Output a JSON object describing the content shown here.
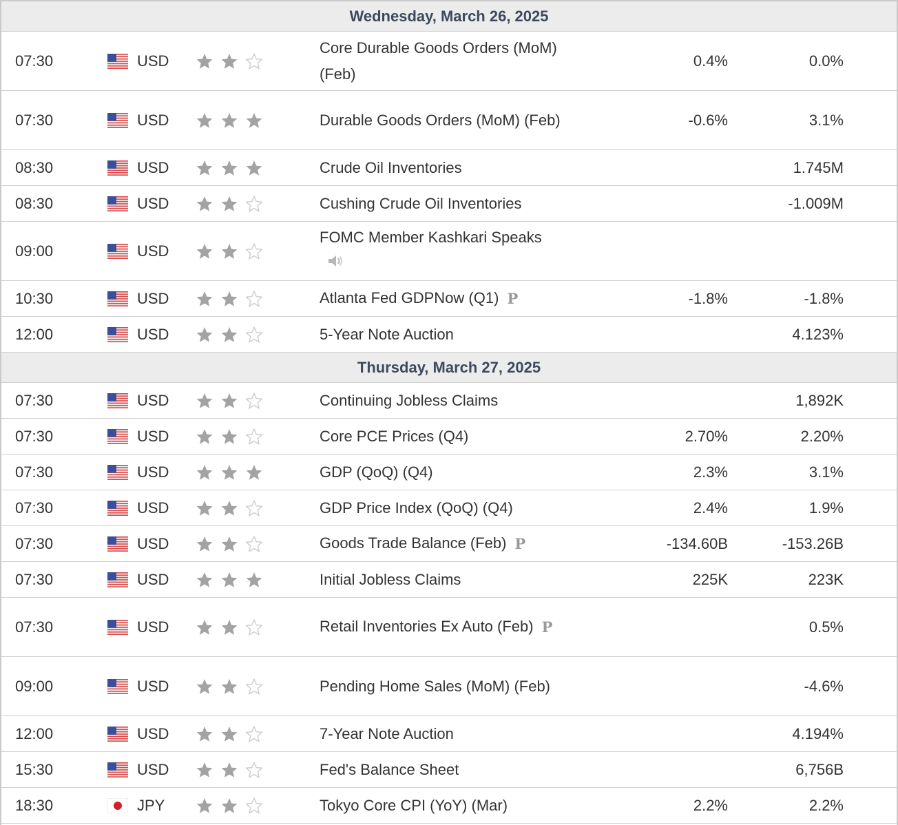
{
  "days": [
    {
      "date": "Wednesday, March 26, 2025",
      "events": [
        {
          "time": "07:30",
          "country": "us",
          "currency": "USD",
          "stars": 2,
          "name": "Core Durable Goods Orders (MoM) (Feb)",
          "value1": "0.4%",
          "value2": "0.0%",
          "tall": true
        },
        {
          "time": "07:30",
          "country": "us",
          "currency": "USD",
          "stars": 3,
          "name": "Durable Goods Orders (MoM) (Feb)",
          "value1": "-0.6%",
          "value2": "3.1%",
          "tall": true
        },
        {
          "time": "08:30",
          "country": "us",
          "currency": "USD",
          "stars": 3,
          "name": "Crude Oil Inventories",
          "value1": "",
          "value2": "1.745M"
        },
        {
          "time": "08:30",
          "country": "us",
          "currency": "USD",
          "stars": 2,
          "name": "Cushing Crude Oil Inventories",
          "value1": "",
          "value2": "-1.009M"
        },
        {
          "time": "09:00",
          "country": "us",
          "currency": "USD",
          "stars": 2,
          "name": "FOMC Member Kashkari Speaks",
          "value1": "",
          "value2": "",
          "speaker": true,
          "tall": true
        },
        {
          "time": "10:30",
          "country": "us",
          "currency": "USD",
          "stars": 2,
          "name": "Atlanta Fed GDPNow (Q1)",
          "value1": "-1.8%",
          "value2": "-1.8%",
          "prelim": "P"
        },
        {
          "time": "12:00",
          "country": "us",
          "currency": "USD",
          "stars": 2,
          "name": "5-Year Note Auction",
          "value1": "",
          "value2": "4.123%"
        }
      ]
    },
    {
      "date": "Thursday, March 27, 2025",
      "events": [
        {
          "time": "07:30",
          "country": "us",
          "currency": "USD",
          "stars": 2,
          "name": "Continuing Jobless Claims",
          "value1": "",
          "value2": "1,892K"
        },
        {
          "time": "07:30",
          "country": "us",
          "currency": "USD",
          "stars": 2,
          "name": "Core PCE Prices (Q4)",
          "value1": "2.70%",
          "value2": "2.20%"
        },
        {
          "time": "07:30",
          "country": "us",
          "currency": "USD",
          "stars": 3,
          "name": "GDP (QoQ) (Q4)",
          "value1": "2.3%",
          "value2": "3.1%"
        },
        {
          "time": "07:30",
          "country": "us",
          "currency": "USD",
          "stars": 2,
          "name": "GDP Price Index (QoQ) (Q4)",
          "value1": "2.4%",
          "value2": "1.9%"
        },
        {
          "time": "07:30",
          "country": "us",
          "currency": "USD",
          "stars": 2,
          "name": "Goods Trade Balance (Feb)",
          "value1": "-134.60B",
          "value2": "-153.26B",
          "prelim": "P"
        },
        {
          "time": "07:30",
          "country": "us",
          "currency": "USD",
          "stars": 3,
          "name": "Initial Jobless Claims",
          "value1": "225K",
          "value2": "223K"
        },
        {
          "time": "07:30",
          "country": "us",
          "currency": "USD",
          "stars": 2,
          "name": "Retail Inventories Ex Auto (Feb)",
          "value1": "",
          "value2": "0.5%",
          "prelim": "P",
          "tall": true
        },
        {
          "time": "09:00",
          "country": "us",
          "currency": "USD",
          "stars": 2,
          "name": "Pending Home Sales (MoM) (Feb)",
          "value1": "",
          "value2": "-4.6%",
          "tall": true
        },
        {
          "time": "12:00",
          "country": "us",
          "currency": "USD",
          "stars": 2,
          "name": "7-Year Note Auction",
          "value1": "",
          "value2": "4.194%"
        },
        {
          "time": "15:30",
          "country": "us",
          "currency": "USD",
          "stars": 2,
          "name": "Fed's Balance Sheet",
          "value1": "",
          "value2": "6,756B"
        },
        {
          "time": "18:30",
          "country": "jp",
          "currency": "JPY",
          "stars": 2,
          "name": "Tokyo Core CPI (YoY) (Mar)",
          "value1": "2.2%",
          "value2": "2.2%"
        }
      ]
    }
  ],
  "colors": {
    "star_filled": "#a3a3a3",
    "star_empty": "#cfcfcf",
    "header_bg": "#ececec",
    "header_text": "#3d4a5c",
    "row_border": "#cfcfcf"
  },
  "icons": {
    "flag_us": "us-flag-icon",
    "flag_jp": "jp-flag-icon",
    "star": "star-icon",
    "speaker": "speaker-icon"
  }
}
